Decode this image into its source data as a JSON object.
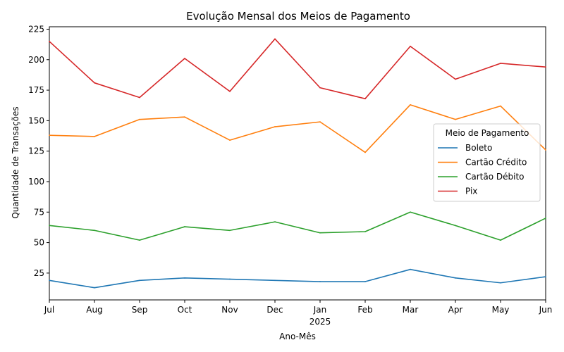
{
  "chart_data": {
    "type": "line",
    "title": "Evolução Mensal dos Meios de Pagamento",
    "xlabel": "Ano-Mês",
    "ylabel": "Quantidade de Transações",
    "categories": [
      "2024-07",
      "2024-08",
      "2024-09",
      "2024-10",
      "2024-11",
      "2024-12",
      "2025-01",
      "2025-02",
      "2025-03",
      "2025-04",
      "2025-05",
      "2025-06"
    ],
    "x_tick_labels": [
      "Jul",
      "Aug",
      "Sep",
      "Oct",
      "Nov",
      "Dec",
      "Jan",
      "Feb",
      "Mar",
      "Apr",
      "May",
      "Jun"
    ],
    "x_year_label": "2025",
    "ylim": [
      3,
      227
    ],
    "y_ticks": [
      25,
      50,
      75,
      100,
      125,
      150,
      175,
      200,
      225
    ],
    "grid": false,
    "legend": {
      "title": "Meio de Pagamento",
      "placement": "center-right"
    },
    "series": [
      {
        "name": "Boleto",
        "color": "#1f77b4",
        "values": [
          19,
          13,
          19,
          21,
          20,
          19,
          18,
          18,
          28,
          21,
          17,
          22
        ]
      },
      {
        "name": "Cartão Crédito",
        "color": "#ff7f0e",
        "values": [
          138,
          137,
          151,
          153,
          134,
          145,
          149,
          124,
          163,
          151,
          162,
          126
        ]
      },
      {
        "name": "Cartão Débito",
        "color": "#2ca02c",
        "values": [
          64,
          60,
          52,
          63,
          60,
          67,
          58,
          59,
          75,
          64,
          52,
          70
        ]
      },
      {
        "name": "Pix",
        "color": "#d62728",
        "values": [
          215,
          181,
          169,
          201,
          174,
          217,
          177,
          168,
          211,
          184,
          197,
          194
        ]
      }
    ]
  }
}
